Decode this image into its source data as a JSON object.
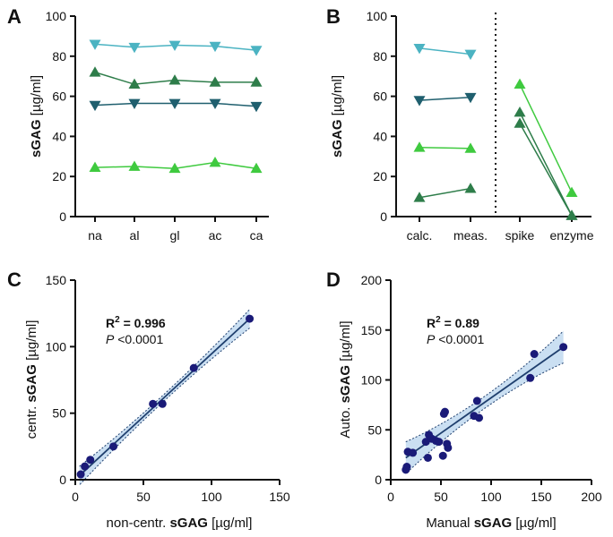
{
  "colors": {
    "light_cyan": "#4bb3c2",
    "dark_green": "#2e7d4a",
    "dark_teal": "#1f5f6e",
    "light_green": "#3fca3f",
    "dot_navy": "#1a1a78",
    "band_fill": "#9fc4e8",
    "fit_line": "#1f3f6e"
  },
  "chart_data": [
    {
      "panel": "A",
      "type": "line",
      "ylabel_bold": "sGAG",
      "ylabel_unit": " [µg/ml]",
      "ylim": [
        0,
        100
      ],
      "yticks": [
        "0",
        "20",
        "40",
        "60",
        "80",
        "100"
      ],
      "categories": [
        "na",
        "al",
        "gl",
        "ac",
        "ca"
      ],
      "series": [
        {
          "marker": "triangle-down",
          "color": "#4bb3c2",
          "values": [
            86,
            84.5,
            85.5,
            85,
            83
          ]
        },
        {
          "marker": "triangle-up",
          "color": "#2e7d4a",
          "values": [
            72,
            66,
            68,
            67,
            67
          ]
        },
        {
          "marker": "triangle-down",
          "color": "#1f5f6e",
          "values": [
            55.5,
            56.5,
            56.5,
            56.5,
            55
          ]
        },
        {
          "marker": "triangle-up",
          "color": "#3fca3f",
          "values": [
            24.5,
            25,
            24,
            27,
            24
          ]
        }
      ]
    },
    {
      "panel": "B",
      "type": "line",
      "ylabel_bold": "sGAG",
      "ylabel_unit": " [µg/ml]",
      "ylim": [
        0,
        100
      ],
      "yticks": [
        "0",
        "20",
        "40",
        "60",
        "80",
        "100"
      ],
      "categories": [
        "calc.",
        "meas.",
        "spike",
        "enzyme"
      ],
      "separator": "dotted line between meas. and spike",
      "series_left": [
        {
          "marker": "triangle-down",
          "color": "#4bb3c2",
          "values": [
            84,
            81
          ]
        },
        {
          "marker": "triangle-down",
          "color": "#1f5f6e",
          "values": [
            58,
            59.5
          ]
        },
        {
          "marker": "triangle-up",
          "color": "#3fca3f",
          "values": [
            34.5,
            34
          ]
        },
        {
          "marker": "triangle-up",
          "color": "#2e7d4a",
          "values": [
            9.5,
            14
          ]
        }
      ],
      "series_right": [
        {
          "marker": "triangle-up",
          "color": "#3fca3f",
          "values": [
            66,
            12
          ]
        },
        {
          "marker": "triangle-up",
          "color": "#2e7d4a",
          "values": [
            52,
            0.5
          ]
        },
        {
          "marker": "triangle-up",
          "color": "#2e7d4a",
          "values": [
            46.5,
            0.5
          ]
        }
      ]
    },
    {
      "panel": "C",
      "type": "scatter",
      "ylabel_pre": "centr. ",
      "ylabel_bold": "sGAG",
      "ylabel_unit": " [µg/ml]",
      "xlabel_pre": "non-centr. ",
      "xlabel_bold": "sGAG",
      "xlabel_unit": " [µg/ml]",
      "xlim": [
        0,
        150
      ],
      "ylim": [
        0,
        150
      ],
      "xticks": [
        "0",
        "50",
        "100",
        "150"
      ],
      "yticks": [
        "0",
        "50",
        "100",
        "150"
      ],
      "r2_label": "R",
      "r2_sup": "2",
      "r2_value": " = 0.996",
      "p_italic": "P",
      "p_text": " <0.0001",
      "fit": {
        "x0": 3,
        "y0": 3,
        "x1": 128,
        "y1": 121
      },
      "points": [
        {
          "x": 4,
          "y": 4
        },
        {
          "x": 7,
          "y": 10
        },
        {
          "x": 11,
          "y": 15
        },
        {
          "x": 28,
          "y": 25
        },
        {
          "x": 57,
          "y": 57
        },
        {
          "x": 64,
          "y": 57
        },
        {
          "x": 87,
          "y": 84
        },
        {
          "x": 128,
          "y": 121
        }
      ]
    },
    {
      "panel": "D",
      "type": "scatter",
      "ylabel_pre": "Auto. ",
      "ylabel_bold": "sGAG",
      "ylabel_unit": " [µg/ml]",
      "xlabel_pre": "Manual ",
      "xlabel_bold": "sGAG",
      "xlabel_unit": " [µg/ml]",
      "xlim": [
        0,
        200
      ],
      "ylim": [
        0,
        200
      ],
      "xticks": [
        "0",
        "50",
        "100",
        "150",
        "200"
      ],
      "yticks": [
        "0",
        "50",
        "100",
        "150",
        "200"
      ],
      "r2_label": "R",
      "r2_sup": "2",
      "r2_value": " = 0.89",
      "p_italic": "P",
      "p_text": " <0.0001",
      "fit": {
        "x0": 15,
        "y0": 22,
        "x1": 172,
        "y1": 133
      },
      "points": [
        {
          "x": 15,
          "y": 10
        },
        {
          "x": 16,
          "y": 13
        },
        {
          "x": 17,
          "y": 28
        },
        {
          "x": 22,
          "y": 27
        },
        {
          "x": 35,
          "y": 38
        },
        {
          "x": 37,
          "y": 22
        },
        {
          "x": 38,
          "y": 45
        },
        {
          "x": 41,
          "y": 41
        },
        {
          "x": 45,
          "y": 39
        },
        {
          "x": 48,
          "y": 38
        },
        {
          "x": 52,
          "y": 24
        },
        {
          "x": 53,
          "y": 66
        },
        {
          "x": 54,
          "y": 68
        },
        {
          "x": 56,
          "y": 36
        },
        {
          "x": 57,
          "y": 32
        },
        {
          "x": 83,
          "y": 64
        },
        {
          "x": 86,
          "y": 79
        },
        {
          "x": 88,
          "y": 62
        },
        {
          "x": 139,
          "y": 102
        },
        {
          "x": 143,
          "y": 126
        },
        {
          "x": 172,
          "y": 133
        }
      ]
    }
  ]
}
